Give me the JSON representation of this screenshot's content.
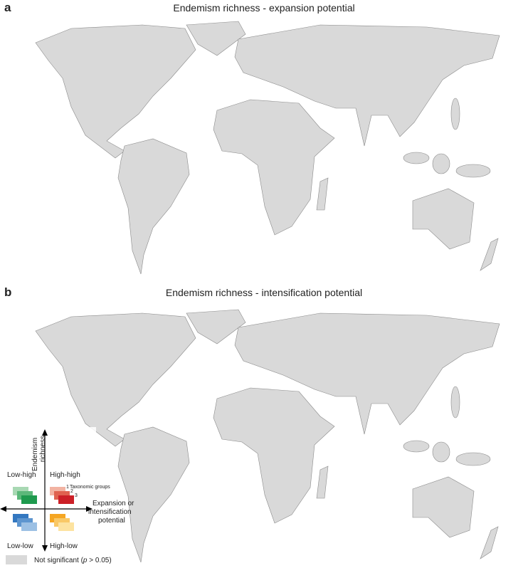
{
  "panels": [
    {
      "label": "a",
      "title": "Endemism richness - expansion potential"
    },
    {
      "label": "b",
      "title": "Endemism richness - intensification potential"
    }
  ],
  "legend": {
    "y_axis_label": [
      "Endemism",
      "richness"
    ],
    "x_axis_label": [
      "Expansion or",
      "intensification",
      "potential"
    ],
    "quadrants": {
      "top_left": "Low-high",
      "top_right": "High-high",
      "bottom_left": "Low-low",
      "bottom_right": "High-low"
    },
    "taxonomic_groups": {
      "title": "Taxonomic groups",
      "numbers": [
        "1",
        "2",
        "3"
      ]
    },
    "not_significant": {
      "before": "Not significant (",
      "italic": "p",
      "after": " > 0.05)"
    }
  }
}
